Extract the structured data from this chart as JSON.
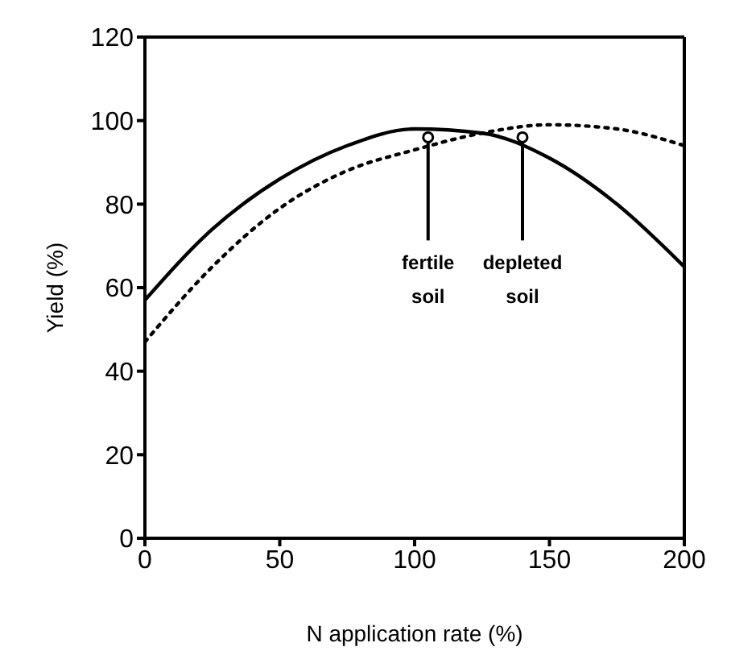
{
  "chart_data": {
    "type": "line",
    "xlabel": "N application rate (%)",
    "ylabel": "Yield (%)",
    "xlim": [
      0,
      200
    ],
    "ylim": [
      0,
      120
    ],
    "xticks": [
      0,
      50,
      100,
      150,
      200
    ],
    "yticks": [
      0,
      20,
      40,
      60,
      80,
      100,
      120
    ],
    "grid": false,
    "legend": false,
    "marker": "none",
    "series": [
      {
        "color": "#000000",
        "line_style": "solid",
        "x": [
          0,
          25,
          50,
          75,
          100,
          125,
          150,
          175,
          200
        ],
        "values": [
          57,
          74,
          86,
          94,
          98,
          97,
          91,
          80,
          65
        ]
      },
      {
        "color": "#000000",
        "line_style": "dotted",
        "x": [
          0,
          25,
          50,
          75,
          100,
          125,
          150,
          175,
          200
        ],
        "values": [
          47,
          65,
          79,
          88,
          93,
          97,
          99,
          98,
          94
        ]
      }
    ],
    "annotations": [
      {
        "text": "fertile soil",
        "x": 105,
        "y": 96
      },
      {
        "text": "depleted soil",
        "x": 140,
        "y": 96
      }
    ]
  }
}
